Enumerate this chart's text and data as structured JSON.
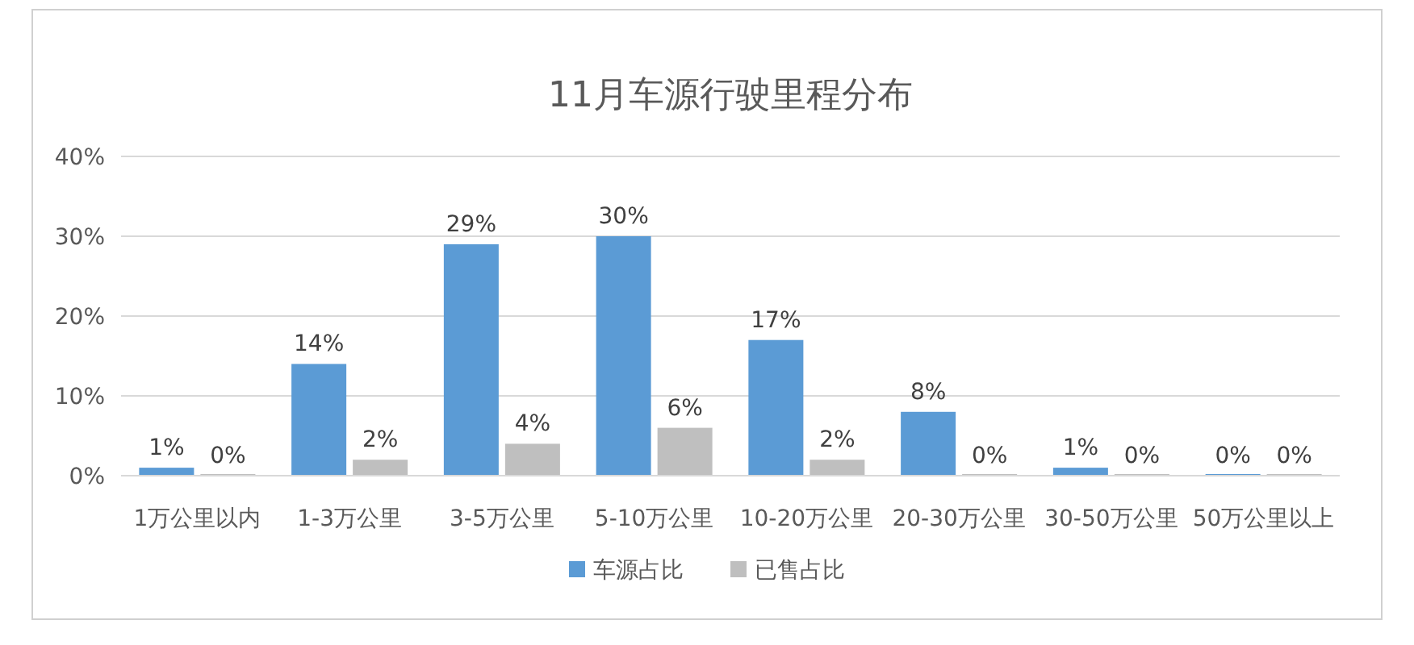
{
  "chart_data": {
    "type": "bar",
    "title": "11月车源行驶里程分布",
    "categories": [
      "1万公里以内",
      "1-3万公里",
      "3-5万公里",
      "5-10万公里",
      "10-20万公里",
      "20-30万公里",
      "30-50万公里",
      "50万公里以上"
    ],
    "series": [
      {
        "name": "车源占比",
        "color": "#5b9bd5",
        "values": [
          1,
          14,
          29,
          30,
          17,
          8,
          1,
          0
        ],
        "value_labels": [
          "1%",
          "14%",
          "29%",
          "30%",
          "17%",
          "8%",
          "1%",
          "0%"
        ]
      },
      {
        "name": "已售占比",
        "color": "#bfbfbf",
        "values": [
          0,
          2,
          4,
          6,
          2,
          0,
          0,
          0
        ],
        "value_labels": [
          "0%",
          "2%",
          "4%",
          "6%",
          "2%",
          "0%",
          "0%",
          "0%"
        ]
      }
    ],
    "ylim": [
      0,
      40
    ],
    "yticks": [
      {
        "value": 0,
        "label": "0%"
      },
      {
        "value": 10,
        "label": "10%"
      },
      {
        "value": 20,
        "label": "20%"
      },
      {
        "value": 30,
        "label": "30%"
      },
      {
        "value": 40,
        "label": "40%"
      }
    ],
    "grid": "y",
    "legend": "bottom"
  }
}
